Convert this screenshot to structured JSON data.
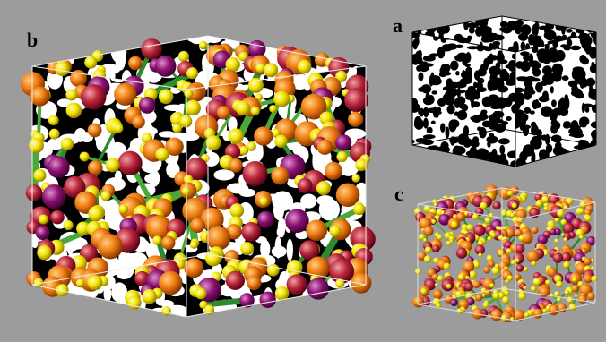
{
  "panels": [
    {
      "label": "b"
    },
    {
      "label": "a"
    },
    {
      "label": "c"
    }
  ]
}
